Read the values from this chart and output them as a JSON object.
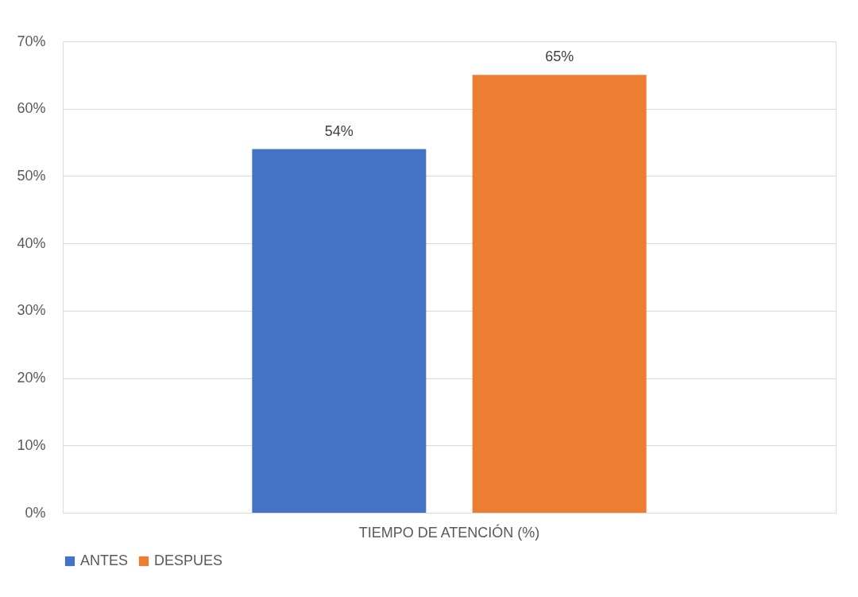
{
  "chart_data": {
    "type": "bar",
    "categories": [
      "TIEMPO DE ATENCIÓN (%)"
    ],
    "series": [
      {
        "name": "ANTES",
        "color": "#4472c4",
        "values": [
          54
        ]
      },
      {
        "name": "DESPUES",
        "color": "#ed7d31",
        "values": [
          65
        ]
      }
    ],
    "ylim": [
      0,
      70
    ],
    "yticks": [
      {
        "value": 0,
        "label": "0%"
      },
      {
        "value": 10,
        "label": "10%"
      },
      {
        "value": 20,
        "label": "20%"
      },
      {
        "value": 30,
        "label": "30%"
      },
      {
        "value": 40,
        "label": "40%"
      },
      {
        "value": 50,
        "label": "50%"
      },
      {
        "value": 60,
        "label": "60%"
      },
      {
        "value": 70,
        "label": "70%"
      }
    ],
    "value_labels": [
      "54%",
      "65%"
    ],
    "grid": "y",
    "legend": "bottom"
  }
}
